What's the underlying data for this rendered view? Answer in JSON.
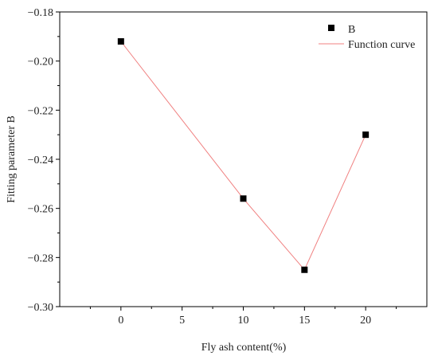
{
  "chart_data": {
    "type": "scatter",
    "title": "",
    "xlabel": "Fly ash content(%)",
    "ylabel": "Fitting parameter B",
    "xlim": [
      -5,
      25
    ],
    "ylim": [
      -0.3,
      -0.18
    ],
    "x_ticks": [
      0,
      5,
      10,
      15,
      20
    ],
    "y_ticks": [
      -0.3,
      -0.28,
      -0.26,
      -0.24,
      -0.22,
      -0.2,
      -0.18
    ],
    "x_tick_labels": [
      "0",
      "5",
      "10",
      "15",
      "20"
    ],
    "y_tick_labels": [
      "−0.30",
      "−0.28",
      "−0.26",
      "−0.24",
      "−0.22",
      "−0.20",
      "−0.18"
    ],
    "grid": false,
    "legend_position": "top-right",
    "series": [
      {
        "name": "B",
        "kind": "scatter",
        "marker": "square",
        "color": "#000000",
        "x": [
          0,
          10,
          15,
          20
        ],
        "y": [
          -0.192,
          -0.256,
          -0.285,
          -0.23
        ]
      },
      {
        "name": "Function curve",
        "kind": "line",
        "color": "#f08080",
        "x": [
          0,
          10,
          15,
          20
        ],
        "y": [
          -0.192,
          -0.256,
          -0.285,
          -0.23
        ]
      }
    ]
  }
}
